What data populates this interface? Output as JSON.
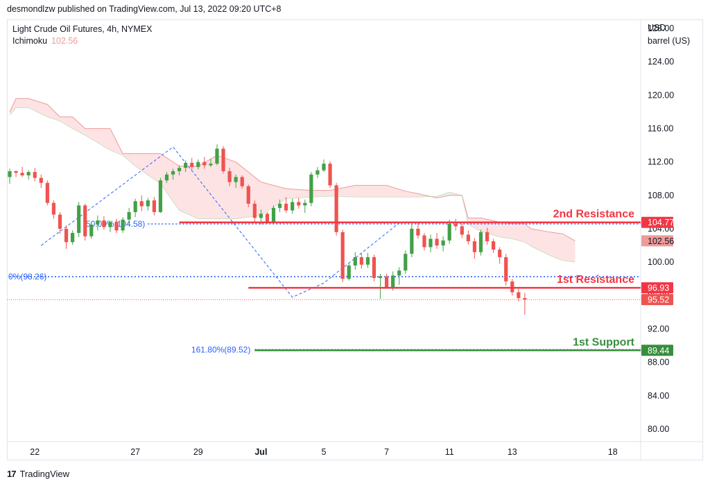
{
  "header": {
    "published": "desmondlzw published on TradingView.com, Jul 13, 2022 09:20 UTC+8"
  },
  "legend": {
    "title": "Light Crude Oil Futures, 4h, NYMEX",
    "indicator": "Ichimoku",
    "indicator_value": "102.56"
  },
  "axis": {
    "currency": "USD",
    "unit": "barrel (US)"
  },
  "footer": {
    "brand": "TradingView"
  },
  "chart_data": {
    "type": "candlestick",
    "title": "Light Crude Oil Futures, 4h, NYMEX",
    "ylim": [
      78.5,
      129
    ],
    "y_ticks": [
      80.0,
      84.0,
      88.0,
      92.0,
      96.0,
      100.0,
      104.0,
      108.0,
      112.0,
      116.0,
      120.0,
      124.0,
      128.0
    ],
    "x_ticks": [
      {
        "label": "22",
        "x": 4
      },
      {
        "label": "27",
        "x": 20
      },
      {
        "label": "29",
        "x": 30
      },
      {
        "label": "Jul",
        "x": 40
      },
      {
        "label": "5",
        "x": 50
      },
      {
        "label": "7",
        "x": 60
      },
      {
        "label": "11",
        "x": 70
      },
      {
        "label": "13",
        "x": 80
      },
      {
        "label": "18",
        "x": 96
      }
    ],
    "candles": [
      [
        110.2,
        111.2,
        109.4,
        110.9
      ],
      [
        110.9,
        111.0,
        110.2,
        110.7
      ],
      [
        110.7,
        111.4,
        110.2,
        110.4
      ],
      [
        110.4,
        111.0,
        109.9,
        110.8
      ],
      [
        110.8,
        111.3,
        109.7,
        110.1
      ],
      [
        110.1,
        110.5,
        108.9,
        109.5
      ],
      [
        109.5,
        109.8,
        106.8,
        107.1
      ],
      [
        107.1,
        107.4,
        105.2,
        105.7
      ],
      [
        105.7,
        106.0,
        103.4,
        104.0
      ],
      [
        104.0,
        104.4,
        101.6,
        102.4
      ],
      [
        102.4,
        103.8,
        102.1,
        103.5
      ],
      [
        103.5,
        107.2,
        103.0,
        106.8
      ],
      [
        106.8,
        107.0,
        102.6,
        103.1
      ],
      [
        103.1,
        104.8,
        102.8,
        104.5
      ],
      [
        104.5,
        105.6,
        103.8,
        105.0
      ],
      [
        105.0,
        105.5,
        103.9,
        104.2
      ],
      [
        104.2,
        105.0,
        103.6,
        104.8
      ],
      [
        104.8,
        105.2,
        103.5,
        103.8
      ],
      [
        103.8,
        105.4,
        103.5,
        105.1
      ],
      [
        105.1,
        106.5,
        104.5,
        106.0
      ],
      [
        106.0,
        107.6,
        105.4,
        107.3
      ],
      [
        107.3,
        108.0,
        106.1,
        106.7
      ],
      [
        106.7,
        107.7,
        106.2,
        107.4
      ],
      [
        107.4,
        107.8,
        105.6,
        106.0
      ],
      [
        106.0,
        110.1,
        105.9,
        109.8
      ],
      [
        109.8,
        110.8,
        109.5,
        110.5
      ],
      [
        110.5,
        111.2,
        109.9,
        110.9
      ],
      [
        110.9,
        111.6,
        110.4,
        111.3
      ],
      [
        111.3,
        112.2,
        110.8,
        111.9
      ],
      [
        111.9,
        112.5,
        111.0,
        111.4
      ],
      [
        111.4,
        112.3,
        111.1,
        112.0
      ],
      [
        112.0,
        112.6,
        111.2,
        111.6
      ],
      [
        111.6,
        112.4,
        111.4,
        111.8
      ],
      [
        111.8,
        114.1,
        111.6,
        113.6
      ],
      [
        113.6,
        113.9,
        110.6,
        110.9
      ],
      [
        110.9,
        111.3,
        109.1,
        109.6
      ],
      [
        109.6,
        110.5,
        108.9,
        110.2
      ],
      [
        110.2,
        110.4,
        108.8,
        109.1
      ],
      [
        109.1,
        109.3,
        106.6,
        107.0
      ],
      [
        107.0,
        107.4,
        104.8,
        105.3
      ],
      [
        105.3,
        106.3,
        104.5,
        105.8
      ],
      [
        105.8,
        106.0,
        104.6,
        104.8
      ],
      [
        104.8,
        106.8,
        104.6,
        106.5
      ],
      [
        106.5,
        107.5,
        106.0,
        107.0
      ],
      [
        107.0,
        107.8,
        105.9,
        106.2
      ],
      [
        106.2,
        107.6,
        105.8,
        107.2
      ],
      [
        107.2,
        107.7,
        106.4,
        106.8
      ],
      [
        106.8,
        107.5,
        105.9,
        107.1
      ],
      [
        107.1,
        110.8,
        106.7,
        110.5
      ],
      [
        110.5,
        111.4,
        110.1,
        111.0
      ],
      [
        111.0,
        112.3,
        110.8,
        111.8
      ],
      [
        111.8,
        112.1,
        108.9,
        109.2
      ],
      [
        109.2,
        109.5,
        103.2,
        103.6
      ],
      [
        103.6,
        103.9,
        97.6,
        98.0
      ],
      [
        98.0,
        99.9,
        97.8,
        99.6
      ],
      [
        99.6,
        101.2,
        99.1,
        100.6
      ],
      [
        100.6,
        101.0,
        99.2,
        99.7
      ],
      [
        99.7,
        101.1,
        99.3,
        100.6
      ],
      [
        100.6,
        100.9,
        97.7,
        98.1
      ],
      [
        98.1,
        98.6,
        95.6,
        98.3
      ],
      [
        98.3,
        98.6,
        96.8,
        97.0
      ],
      [
        97.0,
        98.9,
        96.6,
        98.4
      ],
      [
        98.4,
        99.4,
        97.3,
        99.0
      ],
      [
        99.0,
        101.4,
        98.6,
        101.0
      ],
      [
        101.0,
        104.6,
        100.6,
        104.0
      ],
      [
        104.0,
        104.8,
        102.8,
        103.2
      ],
      [
        103.2,
        103.5,
        101.4,
        101.8
      ],
      [
        101.8,
        103.3,
        101.2,
        102.8
      ],
      [
        102.8,
        103.5,
        101.6,
        102.0
      ],
      [
        102.0,
        103.1,
        101.3,
        102.6
      ],
      [
        102.6,
        105.1,
        102.2,
        104.6
      ],
      [
        104.6,
        105.2,
        103.8,
        104.3
      ],
      [
        104.3,
        104.6,
        102.9,
        103.3
      ],
      [
        103.3,
        103.8,
        102.1,
        102.5
      ],
      [
        102.5,
        102.9,
        100.4,
        101.2
      ],
      [
        101.2,
        103.9,
        100.8,
        103.6
      ],
      [
        103.6,
        104.1,
        102.1,
        102.5
      ],
      [
        102.5,
        102.8,
        101.1,
        101.5
      ],
      [
        101.5,
        101.8,
        99.8,
        100.6
      ],
      [
        100.6,
        101.0,
        97.2,
        97.7
      ],
      [
        97.7,
        98.0,
        96.0,
        96.4
      ],
      [
        96.4,
        96.8,
        95.3,
        95.7
      ],
      [
        95.7,
        96.3,
        93.7,
        95.52
      ]
    ],
    "cloud_upper": [
      [
        0,
        118.0
      ],
      [
        1,
        119.6
      ],
      [
        3,
        119.6
      ],
      [
        6,
        118.9
      ],
      [
        8,
        117.4
      ],
      [
        10,
        117.4
      ],
      [
        12,
        116.0
      ],
      [
        16,
        116.0
      ],
      [
        18,
        113.0
      ],
      [
        20,
        113.0
      ],
      [
        24,
        113.0
      ],
      [
        27,
        111.5
      ],
      [
        30,
        111.5
      ],
      [
        33,
        112.8
      ],
      [
        36,
        112.0
      ],
      [
        40,
        109.6
      ],
      [
        44,
        108.8
      ],
      [
        48,
        108.6
      ],
      [
        51,
        108.6
      ],
      [
        55,
        109.2
      ],
      [
        60,
        109.2
      ],
      [
        63,
        108.5
      ],
      [
        65,
        108.2
      ],
      [
        68,
        107.7
      ],
      [
        70,
        108.0
      ],
      [
        72,
        108.0
      ],
      [
        73,
        105.3
      ],
      [
        75,
        105.3
      ],
      [
        78,
        104.8
      ],
      [
        80,
        104.6
      ],
      [
        82,
        104.6
      ],
      [
        83,
        104.0
      ],
      [
        86,
        103.6
      ],
      [
        88,
        103.4
      ],
      [
        90,
        102.56
      ]
    ],
    "cloud_lower": [
      [
        0,
        117.6
      ],
      [
        1,
        118.5
      ],
      [
        3,
        118.5
      ],
      [
        6,
        117.4
      ],
      [
        8,
        116.9
      ],
      [
        10,
        116.0
      ],
      [
        12,
        115.2
      ],
      [
        16,
        113.4
      ],
      [
        18,
        112.8
      ],
      [
        20,
        111.5
      ],
      [
        24,
        109.4
      ],
      [
        27,
        106.2
      ],
      [
        30,
        105.2
      ],
      [
        33,
        105.2
      ],
      [
        36,
        105.2
      ],
      [
        40,
        105.6
      ],
      [
        44,
        107.6
      ],
      [
        48,
        107.8
      ],
      [
        51,
        107.9
      ],
      [
        55,
        107.8
      ],
      [
        60,
        107.8
      ],
      [
        63,
        107.8
      ],
      [
        65,
        107.8
      ],
      [
        68,
        107.9
      ],
      [
        70,
        108.4
      ],
      [
        72,
        108.0
      ],
      [
        73,
        104.5
      ],
      [
        75,
        103.7
      ],
      [
        78,
        103.0
      ],
      [
        80,
        102.8
      ],
      [
        82,
        102.4
      ],
      [
        83,
        101.9
      ],
      [
        86,
        100.8
      ],
      [
        88,
        100.2
      ],
      [
        90,
        100.0
      ]
    ],
    "fib_lines": [
      {
        "label": "50.00%(104.58)",
        "value": 104.58,
        "x_start": 22,
        "x_end": 90,
        "color": "#2962ff"
      },
      {
        "label": "0%(98.26)",
        "value": 98.26,
        "x_start": 0,
        "x_end": 90,
        "color": "#2962ff"
      },
      {
        "label": "161.80%(89.52)",
        "value": 89.52,
        "x_start": 39,
        "x_end": 90,
        "color": "#2962ff"
      }
    ],
    "levels": [
      {
        "label": "2nd Resistance",
        "value": 104.77,
        "price_tag": "104.77",
        "x_start": 27,
        "color": "#f23645"
      },
      {
        "label": "1st Resistance",
        "value": 96.93,
        "price_tag": "96.93",
        "x_start": 38,
        "color": "#f23645"
      },
      {
        "label": "1st Support",
        "value": 89.44,
        "price_tag": "89.44",
        "x_start": 39,
        "color": "#388e3c"
      }
    ],
    "current_price": {
      "value": 95.52,
      "tag": "95.52"
    },
    "ichimoku_tag": {
      "value": 102.56,
      "tag": "102.56"
    },
    "fib_path": [
      [
        5,
        102.0
      ],
      [
        26,
        113.8
      ],
      [
        45,
        95.8
      ],
      [
        50,
        97.5
      ],
      [
        62,
        104.7
      ]
    ],
    "colors": {
      "up": "#26a69a",
      "up_body": "#43a047",
      "down": "#ef5350",
      "cloud_bear": "#fde3e3",
      "cloud_bull": "#e3f3e6",
      "cloud_line": "#ef9a9a"
    }
  }
}
